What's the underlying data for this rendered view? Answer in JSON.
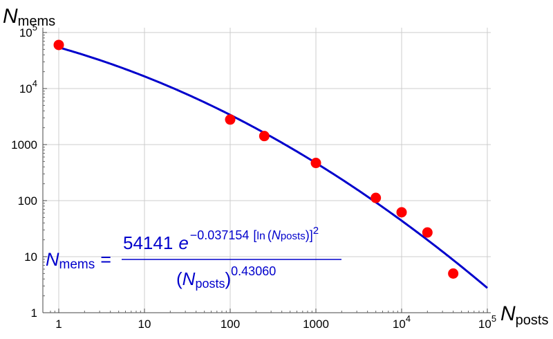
{
  "chart_data": {
    "type": "scatter",
    "title": "",
    "x_scale": "log",
    "y_scale": "log",
    "xlim": [
      0.7,
      100000
    ],
    "ylim": [
      1,
      100000
    ],
    "grid": true,
    "ylabel": {
      "main": "N",
      "sub": "mems"
    },
    "xlabel": {
      "main": "N",
      "sub": "posts"
    },
    "x_ticks": [
      {
        "value": 1,
        "label": "1"
      },
      {
        "value": 10,
        "label": "10"
      },
      {
        "value": 100,
        "label": "100"
      },
      {
        "value": 1000,
        "label": "1000"
      },
      {
        "value": 10000,
        "base": "10",
        "exp": "4"
      },
      {
        "value": 100000,
        "base": "10",
        "exp": "5"
      }
    ],
    "y_ticks": [
      {
        "value": 1,
        "label": "1"
      },
      {
        "value": 10,
        "label": "10"
      },
      {
        "value": 100,
        "label": "100"
      },
      {
        "value": 1000,
        "label": "1000"
      },
      {
        "value": 10000,
        "base": "10",
        "exp": "4"
      },
      {
        "value": 100000,
        "base": "10",
        "exp": "5"
      }
    ],
    "points": [
      {
        "x": 1,
        "y": 60000
      },
      {
        "x": 100,
        "y": 2800
      },
      {
        "x": 250,
        "y": 1420
      },
      {
        "x": 1000,
        "y": 470
      },
      {
        "x": 5000,
        "y": 112
      },
      {
        "x": 10000,
        "y": 62
      },
      {
        "x": 20000,
        "y": 27
      },
      {
        "x": 40000,
        "y": 5
      }
    ],
    "point_color": "#ff0000",
    "curve_color": "#0000cc",
    "fit": {
      "coefficient": 54141,
      "exp_coefficient": 0.037154,
      "power": 0.4306
    },
    "formula": {
      "lhs_main": "N",
      "lhs_sub": "mems",
      "equals": "=",
      "num_coeff": "54141",
      "num_e": "e",
      "num_exp_coeff": "−0.037154",
      "num_exp_ln": "ln",
      "num_exp_var": "N",
      "num_exp_var_sub": "posts",
      "num_exp_power": "2",
      "den_var": "N",
      "den_var_sub": "posts",
      "den_power": "0.43060"
    }
  }
}
